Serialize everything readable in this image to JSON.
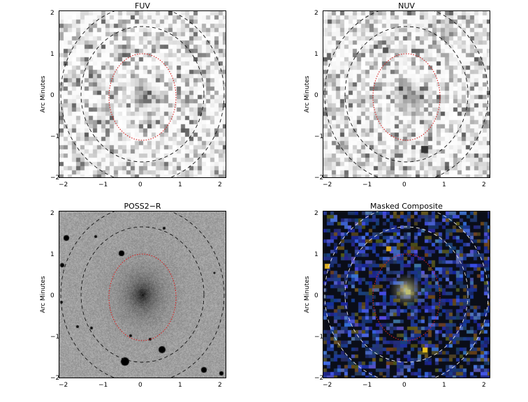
{
  "panels": [
    {
      "id": "fuv",
      "title": "FUV",
      "ylabel": "Arc Minutes",
      "x_ticks": [
        "−2",
        "−1",
        "0",
        "1",
        "2"
      ],
      "y_ticks": [
        "2",
        "1",
        "0",
        "−1",
        "−2"
      ],
      "style": "grayscale-noisy"
    },
    {
      "id": "nuv",
      "title": "NUV",
      "ylabel": "Arc Minutes",
      "x_ticks": [
        "−2",
        "−1",
        "0",
        "1",
        "2"
      ],
      "y_ticks": [
        "2",
        "1",
        "0",
        "−1",
        "−2"
      ],
      "style": "grayscale-noisy"
    },
    {
      "id": "poss2r",
      "title": "POSS2−R",
      "ylabel": "Arc Minutes",
      "x_ticks": [
        "−2",
        "−1",
        "0",
        "1",
        "2"
      ],
      "y_ticks": [
        "2",
        "1",
        "0",
        "−1",
        "−2"
      ],
      "style": "grayscale-optical"
    },
    {
      "id": "composite",
      "title": "Masked Composite",
      "ylabel": "Arc Minutes",
      "x_ticks": [
        "−2",
        "−1",
        "0",
        "1",
        "2"
      ],
      "y_ticks": [
        "2",
        "1",
        "0",
        "−1",
        "−2"
      ],
      "style": "color-composite"
    }
  ],
  "colors": {
    "inner_ellipse": "#d62020",
    "outer_ellipse_dark": "#111111",
    "outer_ellipse_light": "#e8e8e8"
  }
}
